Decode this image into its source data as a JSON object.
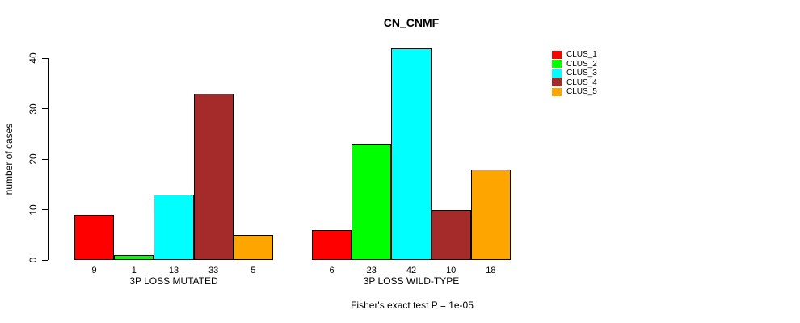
{
  "chart_data": {
    "type": "bar",
    "title": "CN_CNMF",
    "xlabel": "",
    "ylabel": "number of cases",
    "ylim": [
      0,
      40
    ],
    "yticks": [
      0,
      10,
      20,
      30,
      40
    ],
    "grid": false,
    "legend_position": "right",
    "categories": [
      "3P LOSS MUTATED",
      "3P LOSS WILD-TYPE"
    ],
    "series": [
      {
        "name": "CLUS_1",
        "color": "#FF0000",
        "values": [
          9,
          6
        ]
      },
      {
        "name": "CLUS_2",
        "color": "#00FF00",
        "values": [
          1,
          23
        ]
      },
      {
        "name": "CLUS_3",
        "color": "#00FFFF",
        "values": [
          13,
          42
        ]
      },
      {
        "name": "CLUS_4",
        "color": "#A52A2A",
        "values": [
          33,
          10
        ]
      },
      {
        "name": "CLUS_5",
        "color": "#FFA500",
        "values": [
          5,
          18
        ]
      }
    ],
    "bar_value_labels": [
      [
        9,
        1,
        13,
        33,
        5
      ],
      [
        6,
        23,
        42,
        10,
        18
      ]
    ],
    "annotation": "Fisher's exact test P = 1e-05"
  }
}
